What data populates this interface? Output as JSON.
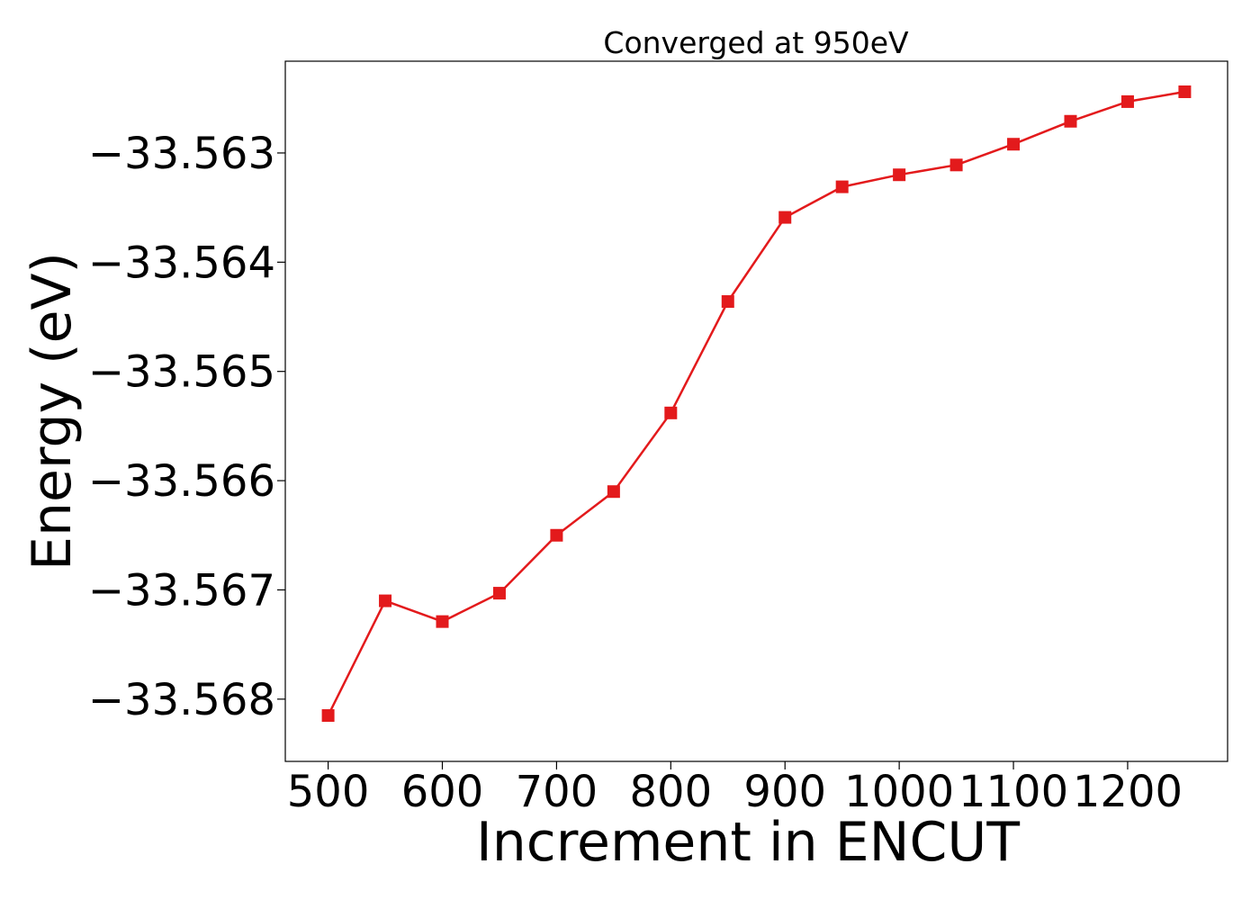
{
  "chart_data": {
    "type": "line",
    "title": "Converged at 950eV",
    "xlabel": "Increment in ENCUT",
    "ylabel": "Energy (eV)",
    "x": [
      500,
      550,
      600,
      650,
      700,
      750,
      800,
      850,
      900,
      950,
      1000,
      1050,
      1100,
      1150,
      1200,
      1250
    ],
    "series": [
      {
        "values": [
          -33.56815,
          -33.5671,
          -33.56729,
          -33.56703,
          -33.5665,
          -33.5661,
          -33.56538,
          -33.56436,
          -33.56359,
          -33.56331,
          -33.5632,
          -33.56311,
          -33.56292,
          -33.56271,
          -33.56253,
          -33.56244
        ],
        "color": "#e31a1c",
        "marker": "square"
      }
    ],
    "xticks": [
      500,
      600,
      700,
      800,
      900,
      1000,
      1100,
      1200
    ],
    "xtick_labels": [
      "500",
      "600",
      "700",
      "800",
      "900",
      "1000",
      "1100",
      "1200"
    ],
    "yticks": [
      -33.568,
      -33.567,
      -33.566,
      -33.565,
      -33.564,
      -33.563
    ],
    "ytick_labels": [
      "−33.568",
      "−33.567",
      "−33.566",
      "−33.565",
      "−33.564",
      "−33.563"
    ],
    "xlim": [
      462.5,
      1287.5
    ],
    "ylim": [
      -33.56857,
      -33.56216
    ],
    "grid": false,
    "legend": false
  }
}
